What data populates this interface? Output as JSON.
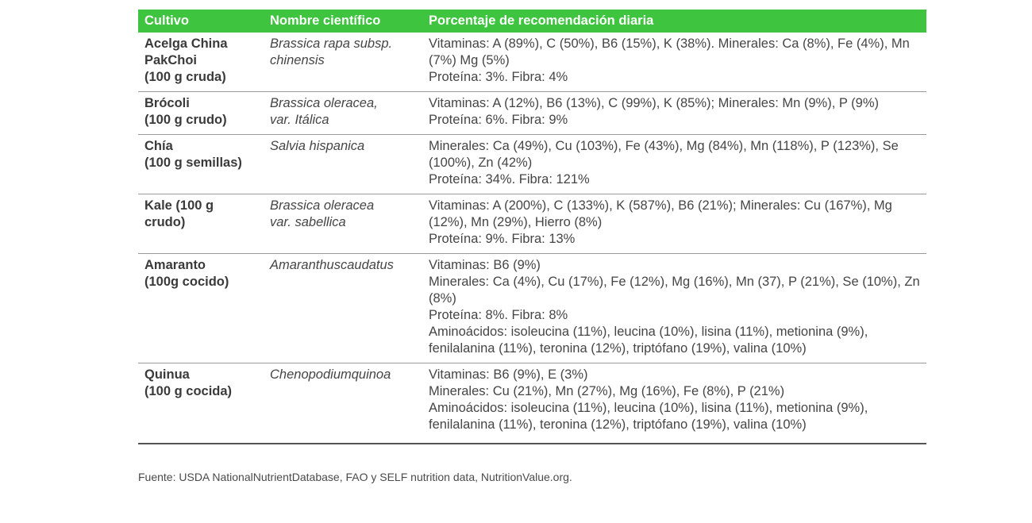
{
  "table": {
    "headers": {
      "crop": "Cultivo",
      "scientific": "Nombre científico",
      "percentage": "Porcentaje de recomendación diaria"
    },
    "rows": [
      {
        "crop": [
          "Acelga China",
          "PakChoi",
          "(100 g cruda)"
        ],
        "scientific": [
          "Brassica rapa subsp.",
          "chinensis"
        ],
        "percentage": [
          "Vitaminas: A (89%), C (50%), B6 (15%), K (38%). Minerales: Ca (8%), Fe (4%), Mn (7%) Mg (5%)",
          "Proteína: 3%. Fibra: 4%"
        ]
      },
      {
        "crop": [
          "Brócoli",
          "(100 g crudo)"
        ],
        "scientific": [
          "Brassica oleracea,",
          "var. Itálica"
        ],
        "percentage": [
          "Vitaminas: A (12%), B6 (13%), C (99%), K (85%); Minerales: Mn (9%), P (9%)",
          "Proteína: 6%. Fibra: 9%"
        ]
      },
      {
        "crop": [
          "Chía",
          "(100 g semillas)"
        ],
        "scientific": [
          "Salvia hispanica"
        ],
        "percentage": [
          "Minerales: Ca (49%), Cu (103%), Fe (43%), Mg (84%), Mn (118%), P (123%), Se (100%), Zn (42%)",
          "Proteína: 34%. Fibra: 121%"
        ]
      },
      {
        "crop": [
          "Kale (100 g",
          "crudo)"
        ],
        "scientific": [
          "Brassica oleracea",
          "var. sabellica"
        ],
        "percentage": [
          "Vitaminas: A (200%), C (133%), K (587%), B6 (21%); Minerales: Cu (167%), Mg (12%), Mn (29%), Hierro (8%)",
          "Proteína: 9%. Fibra: 13%"
        ]
      },
      {
        "crop": [
          "Amaranto",
          "(100g cocido)"
        ],
        "scientific": [
          "Amaranthuscaudatus"
        ],
        "percentage": [
          "Vitaminas: B6 (9%)",
          "Minerales: Ca (4%), Cu (17%), Fe (12%), Mg (16%), Mn (37), P (21%), Se (10%), Zn (8%)",
          "Proteína: 8%. Fibra: 8%",
          "Aminoácidos: isoleucina (11%), leucina (10%), lisina (11%), metionina (9%), fenilalanina (11%), teronina (12%), triptófano (19%), valina (10%)"
        ]
      },
      {
        "crop": [
          "Quinua",
          "(100 g cocida)"
        ],
        "scientific": [
          "Chenopodiumquinoa"
        ],
        "percentage": [
          "Vitaminas: B6 (9%), E (3%)",
          "Minerales: Cu (21%), Mn (27%), Mg (16%), Fe (8%), P (21%)",
          "Aminoácidos: isoleucina (11%), leucina (10%), lisina (11%), metionina (9%), fenilalanina (11%), teronina (12%), triptófano (19%), valina (10%)"
        ]
      }
    ]
  },
  "source": "Fuente: USDA NationalNutrientDatabase, FAO y SELF nutrition data, NutritionValue.org.",
  "colors": {
    "header_background": "#3ec43e",
    "header_text": "#ffffff"
  }
}
